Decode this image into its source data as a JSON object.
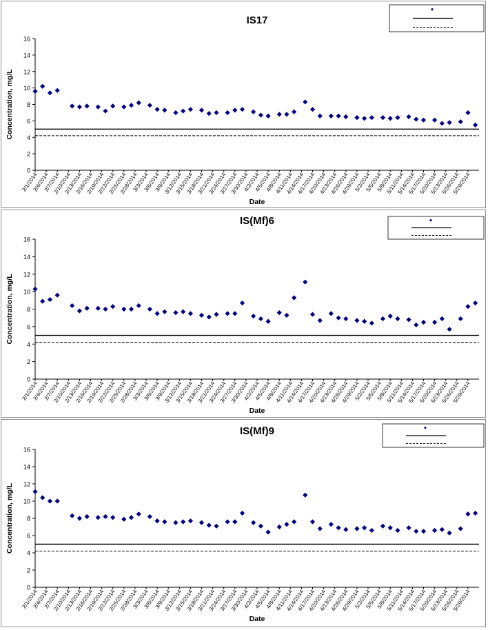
{
  "chart_data": [
    {
      "type": "scatter",
      "title": "IS17",
      "xlabel": "Date",
      "ylabel": "Concentration, mg/L",
      "ylim": [
        0,
        16
      ],
      "yticks": [
        "0",
        "2",
        "4",
        "6",
        "8",
        "10",
        "12",
        "14",
        "16"
      ],
      "xlim": [
        "2/1/2014",
        "6/1/2014"
      ],
      "xticks": [
        "2/1/2014",
        "2/4/2014",
        "2/7/2014",
        "2/10/2014",
        "2/13/2014",
        "2/16/2014",
        "2/19/2014",
        "2/22/2014",
        "2/25/2014",
        "2/28/2014",
        "3/3/2014",
        "3/6/2014",
        "3/9/2014",
        "3/12/2014",
        "3/15/2014",
        "3/18/2014",
        "3/21/2014",
        "3/24/2014",
        "3/27/2014",
        "3/30/2014",
        "4/2/2014",
        "4/5/2014",
        "4/8/2014",
        "4/11/2014",
        "4/14/2014",
        "4/17/2014",
        "4/20/2014",
        "4/23/2014",
        "4/26/2014",
        "4/29/2014",
        "5/2/2014",
        "5/5/2014",
        "5/8/2014",
        "5/11/2014",
        "5/14/2014",
        "5/17/2014",
        "5/20/2014",
        "5/23/2014",
        "5/26/2014",
        "5/29/2014"
      ],
      "legend_position": "top-right",
      "series": [
        {
          "color": "#000080",
          "marker": "diamond",
          "x": [
            "2/1/2014",
            "2/3/2014",
            "2/5/2014",
            "2/7/2014",
            "2/11/2014",
            "2/13/2014",
            "2/15/2014",
            "2/18/2014",
            "2/20/2014",
            "2/22/2014",
            "2/25/2014",
            "2/27/2014",
            "3/1/2014",
            "3/4/2014",
            "3/6/2014",
            "3/8/2014",
            "3/11/2014",
            "3/13/2014",
            "3/15/2014",
            "3/18/2014",
            "3/20/2014",
            "3/22/2014",
            "3/25/2014",
            "3/27/2014",
            "3/29/2014",
            "4/1/2014",
            "4/3/2014",
            "4/5/2014",
            "4/8/2014",
            "4/10/2014",
            "4/12/2014",
            "4/15/2014",
            "4/17/2014",
            "4/19/2014",
            "4/22/2014",
            "4/24/2014",
            "4/26/2014",
            "4/29/2014",
            "5/1/2014",
            "5/3/2014",
            "5/6/2014",
            "5/8/2014",
            "5/10/2014",
            "5/13/2014",
            "5/15/2014",
            "5/17/2014",
            "5/20/2014",
            "5/22/2014",
            "5/24/2014",
            "5/27/2014",
            "5/29/2014",
            "5/31/2014"
          ],
          "y": [
            9.6,
            10.2,
            9.4,
            9.7,
            7.8,
            7.7,
            7.8,
            7.7,
            7.2,
            7.8,
            7.7,
            7.9,
            8.2,
            7.9,
            7.4,
            7.3,
            7.0,
            7.2,
            7.4,
            7.3,
            6.9,
            7.0,
            7.0,
            7.3,
            7.4,
            7.1,
            6.7,
            6.6,
            6.8,
            6.8,
            7.1,
            8.3,
            7.4,
            6.6,
            6.6,
            6.6,
            6.5,
            6.4,
            6.3,
            6.4,
            6.4,
            6.3,
            6.4,
            6.5,
            6.2,
            6.1,
            6.1,
            5.7,
            5.8,
            5.9,
            7.0,
            5.5
          ]
        }
      ],
      "reference_lines": [
        {
          "y": 5.0,
          "style": "solid",
          "color": "#000000"
        },
        {
          "y": 4.2,
          "style": "dashed",
          "color": "#000000"
        }
      ]
    },
    {
      "type": "scatter",
      "title": "IS(Mf)6",
      "xlabel": "Date",
      "ylabel": "Concentration, mg/L",
      "ylim": [
        0,
        16
      ],
      "yticks": [
        "0",
        "2",
        "4",
        "6",
        "8",
        "10",
        "12",
        "14",
        "16"
      ],
      "xlim": [
        "2/1/2014",
        "6/1/2014"
      ],
      "xticks": [
        "2/1/2014",
        "2/4/2014",
        "2/7/2014",
        "2/10/2014",
        "2/13/2014",
        "2/16/2014",
        "2/19/2014",
        "2/22/2014",
        "2/25/2014",
        "2/28/2014",
        "3/3/2014",
        "3/6/2014",
        "3/9/2014",
        "3/12/2014",
        "3/15/2014",
        "3/18/2014",
        "3/21/2014",
        "3/24/2014",
        "3/27/2014",
        "3/30/2014",
        "4/2/2014",
        "4/5/2014",
        "4/8/2014",
        "4/11/2014",
        "4/14/2014",
        "4/17/2014",
        "4/20/2014",
        "4/23/2014",
        "4/26/2014",
        "4/29/2014",
        "5/2/2014",
        "5/5/2014",
        "5/8/2014",
        "5/11/2014",
        "5/14/2014",
        "5/17/2014",
        "5/20/2014",
        "5/23/2014",
        "5/26/2014",
        "5/29/2014"
      ],
      "legend_position": "top-right",
      "series": [
        {
          "color": "#000080",
          "marker": "diamond",
          "x": [
            "2/1/2014",
            "2/3/2014",
            "2/5/2014",
            "2/7/2014",
            "2/11/2014",
            "2/13/2014",
            "2/15/2014",
            "2/18/2014",
            "2/20/2014",
            "2/22/2014",
            "2/25/2014",
            "2/27/2014",
            "3/1/2014",
            "3/4/2014",
            "3/6/2014",
            "3/8/2014",
            "3/11/2014",
            "3/13/2014",
            "3/15/2014",
            "3/18/2014",
            "3/20/2014",
            "3/22/2014",
            "3/25/2014",
            "3/27/2014",
            "3/29/2014",
            "4/1/2014",
            "4/3/2014",
            "4/5/2014",
            "4/8/2014",
            "4/10/2014",
            "4/12/2014",
            "4/15/2014",
            "4/17/2014",
            "4/19/2014",
            "4/22/2014",
            "4/24/2014",
            "4/26/2014",
            "4/29/2014",
            "5/1/2014",
            "5/3/2014",
            "5/6/2014",
            "5/8/2014",
            "5/10/2014",
            "5/13/2014",
            "5/15/2014",
            "5/17/2014",
            "5/20/2014",
            "5/22/2014",
            "5/24/2014",
            "5/27/2014",
            "5/29/2014",
            "5/31/2014"
          ],
          "y": [
            10.3,
            8.9,
            9.1,
            9.6,
            8.4,
            7.8,
            8.1,
            8.1,
            8.0,
            8.3,
            8.0,
            8.0,
            8.4,
            8.0,
            7.5,
            7.7,
            7.6,
            7.7,
            7.5,
            7.3,
            7.1,
            7.4,
            7.5,
            7.5,
            8.7,
            7.2,
            6.9,
            6.6,
            7.6,
            7.3,
            9.3,
            11.1,
            7.4,
            6.7,
            7.5,
            7.0,
            6.9,
            6.7,
            6.6,
            6.4,
            6.9,
            7.2,
            6.9,
            6.8,
            6.2,
            6.5,
            6.5,
            6.9,
            5.7,
            6.9,
            8.3,
            8.7
          ]
        }
      ],
      "reference_lines": [
        {
          "y": 5.0,
          "style": "solid",
          "color": "#000000"
        },
        {
          "y": 4.2,
          "style": "dashed",
          "color": "#000000"
        }
      ]
    },
    {
      "type": "scatter",
      "title": "IS(Mf)9",
      "xlabel": "Date",
      "ylabel": "Concentration, mg/L",
      "ylim": [
        0,
        16
      ],
      "yticks": [
        "0",
        "2",
        "4",
        "6",
        "8",
        "10",
        "12",
        "14",
        "16"
      ],
      "xlim": [
        "2/1/2014",
        "6/1/2014"
      ],
      "xticks": [
        "2/1/2014",
        "2/4/2014",
        "2/7/2014",
        "2/10/2014",
        "2/13/2014",
        "2/16/2014",
        "2/19/2014",
        "2/22/2014",
        "2/25/2014",
        "2/28/2014",
        "3/3/2014",
        "3/6/2014",
        "3/9/2014",
        "3/12/2014",
        "3/15/2014",
        "3/18/2014",
        "3/21/2014",
        "3/24/2014",
        "3/27/2014",
        "3/30/2014",
        "4/2/2014",
        "4/5/2014",
        "4/8/2014",
        "4/11/2014",
        "4/14/2014",
        "4/17/2014",
        "4/20/2014",
        "4/23/2014",
        "4/26/2014",
        "4/29/2014",
        "5/2/2014",
        "5/5/2014",
        "5/8/2014",
        "5/11/2014",
        "5/14/2014",
        "5/17/2014",
        "5/20/2014",
        "5/23/2014",
        "5/26/2014",
        "5/29/2014"
      ],
      "legend_position": "top-right",
      "series": [
        {
          "color": "#000080",
          "marker": "diamond",
          "x": [
            "2/1/2014",
            "2/3/2014",
            "2/5/2014",
            "2/7/2014",
            "2/11/2014",
            "2/13/2014",
            "2/15/2014",
            "2/18/2014",
            "2/20/2014",
            "2/22/2014",
            "2/25/2014",
            "2/27/2014",
            "3/1/2014",
            "3/4/2014",
            "3/6/2014",
            "3/8/2014",
            "3/11/2014",
            "3/13/2014",
            "3/15/2014",
            "3/18/2014",
            "3/20/2014",
            "3/22/2014",
            "3/25/2014",
            "3/27/2014",
            "3/29/2014",
            "4/1/2014",
            "4/3/2014",
            "4/5/2014",
            "4/8/2014",
            "4/10/2014",
            "4/12/2014",
            "4/15/2014",
            "4/17/2014",
            "4/19/2014",
            "4/22/2014",
            "4/24/2014",
            "4/26/2014",
            "4/29/2014",
            "5/1/2014",
            "5/3/2014",
            "5/6/2014",
            "5/8/2014",
            "5/10/2014",
            "5/13/2014",
            "5/15/2014",
            "5/17/2014",
            "5/20/2014",
            "5/22/2014",
            "5/24/2014",
            "5/27/2014",
            "5/29/2014",
            "5/31/2014"
          ],
          "y": [
            11.1,
            10.4,
            10.0,
            10.0,
            8.3,
            8.0,
            8.2,
            8.1,
            8.2,
            8.1,
            7.9,
            8.1,
            8.5,
            8.2,
            7.7,
            7.6,
            7.5,
            7.6,
            7.7,
            7.5,
            7.2,
            7.1,
            7.6,
            7.6,
            8.6,
            7.5,
            7.1,
            6.4,
            7.0,
            7.3,
            7.6,
            10.7,
            7.6,
            6.8,
            7.3,
            6.9,
            6.7,
            6.8,
            6.9,
            6.6,
            7.1,
            6.9,
            6.6,
            6.9,
            6.5,
            6.5,
            6.6,
            6.7,
            6.3,
            6.8,
            8.5,
            8.6
          ]
        }
      ],
      "reference_lines": [
        {
          "y": 5.0,
          "style": "solid",
          "color": "#000000"
        },
        {
          "y": 4.2,
          "style": "dashed",
          "color": "#000000"
        }
      ]
    }
  ]
}
